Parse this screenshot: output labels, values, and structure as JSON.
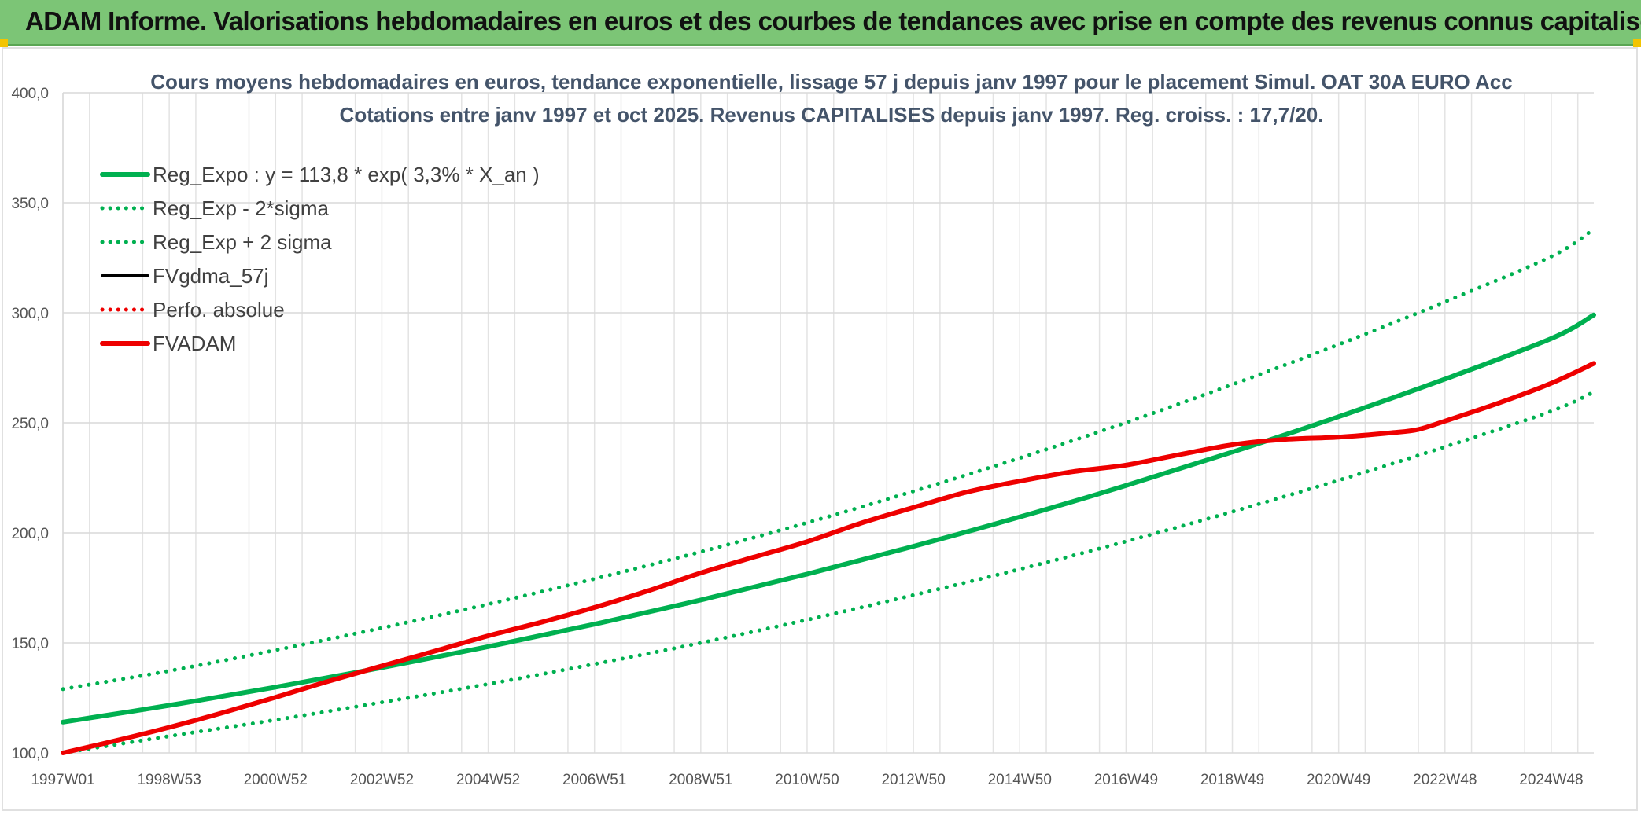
{
  "header": {
    "title": "ADAM Informe. Valorisations hebdomadaires en euros et des courbes de tendances avec prise en compte des revenus connus capitalisés"
  },
  "colors": {
    "header_bg": "#7cc576",
    "green": "#00b050",
    "red": "#ee0000",
    "black": "#000000",
    "grid": "#d9d9d9"
  },
  "chart_data": {
    "type": "line",
    "title": [
      "Cours moyens hebdomadaires en euros, tendance exponentielle, lissage 57 j depuis janv 1997 pour le placement Simul. OAT 30A EURO Acc",
      "Cotations entre janv 1997 et oct 2025. Revenus CAPITALISES depuis janv 1997. Reg. croiss. : 17,7/20."
    ],
    "ylim": [
      100,
      400
    ],
    "yticks": [
      "400,0",
      "350,0",
      "300,0",
      "250,0",
      "200,0",
      "150,0",
      "100,0"
    ],
    "xlim": [
      1997.0,
      2025.8
    ],
    "xticks": [
      {
        "label": "1997W01",
        "x": 1997.0
      },
      {
        "label": "1998W53",
        "x": 1999.0
      },
      {
        "label": "2000W52",
        "x": 2001.0
      },
      {
        "label": "2002W52",
        "x": 2003.0
      },
      {
        "label": "2004W52",
        "x": 2005.0
      },
      {
        "label": "2006W51",
        "x": 2007.0
      },
      {
        "label": "2008W51",
        "x": 2009.0
      },
      {
        "label": "2010W50",
        "x": 2011.0
      },
      {
        "label": "2012W50",
        "x": 2013.0
      },
      {
        "label": "2014W50",
        "x": 2015.0
      },
      {
        "label": "2016W49",
        "x": 2017.0
      },
      {
        "label": "2018W49",
        "x": 2019.0
      },
      {
        "label": "2020W49",
        "x": 2021.0
      },
      {
        "label": "2022W48",
        "x": 2023.0
      },
      {
        "label": "2024W48",
        "x": 2025.0
      }
    ],
    "grid": true,
    "legend_position": "top-left",
    "legend": [
      {
        "name": "Reg_Expo : y = 113,8 * exp( 3,3% *  X_an )",
        "color": "#00b050",
        "style": "solid"
      },
      {
        "name": "Reg_Exp - 2*sigma",
        "color": "#00b050",
        "style": "dotted"
      },
      {
        "name": "Reg_Exp + 2 sigma",
        "color": "#00b050",
        "style": "dotted"
      },
      {
        "name": "FVgdma_57j",
        "color": "#000000",
        "style": "solid"
      },
      {
        "name": "Perfo. absolue",
        "color": "#ee0000",
        "style": "dotted"
      },
      {
        "name": "FVADAM",
        "color": "#ee0000",
        "style": "solid"
      }
    ],
    "series": [
      {
        "name": "Reg_Expo : y = 113,8 * exp( 3,3% *  X_an )",
        "color": "#00b050",
        "style": "solid",
        "x": [
          1997.0,
          1999.0,
          2001.0,
          2003.0,
          2005.0,
          2007.0,
          2009.0,
          2011.0,
          2013.0,
          2015.0,
          2017.0,
          2019.0,
          2021.0,
          2023.0,
          2025.0,
          2025.8
        ],
        "y": [
          114,
          121.6,
          129.9,
          138.8,
          148.3,
          158.5,
          169.5,
          181.3,
          193.9,
          207.2,
          221.5,
          236.7,
          252.8,
          269.9,
          288.3,
          299
        ]
      },
      {
        "name": "Reg_Exp - 2*sigma",
        "color": "#00b050",
        "style": "dotted",
        "x": [
          1997.0,
          1999.0,
          2001.0,
          2003.0,
          2005.0,
          2007.0,
          2009.0,
          2011.0,
          2013.0,
          2015.0,
          2017.0,
          2019.0,
          2021.0,
          2023.0,
          2025.0,
          2025.8
        ],
        "y": [
          100,
          107.6,
          115,
          123,
          131.3,
          140.4,
          150,
          160.5,
          171.7,
          183.5,
          196.1,
          209.6,
          223.9,
          239.1,
          255.3,
          264
        ]
      },
      {
        "name": "Reg_Exp + 2 sigma",
        "color": "#00b050",
        "style": "dotted",
        "x": [
          1997.0,
          1999.0,
          2001.0,
          2003.0,
          2005.0,
          2007.0,
          2009.0,
          2011.0,
          2013.0,
          2015.0,
          2017.0,
          2019.0,
          2021.0,
          2023.0,
          2025.0,
          2025.8
        ],
        "y": [
          129,
          137.3,
          146.7,
          156.8,
          167.6,
          179.1,
          191.4,
          204.6,
          218.9,
          234,
          250.1,
          267.4,
          285.6,
          305,
          325.6,
          338
        ]
      },
      {
        "name": "FVADAM",
        "color": "#ee0000",
        "style": "solid",
        "x": [
          1997.0,
          1998.0,
          1999.0,
          2000.0,
          2001.0,
          2002.0,
          2003.0,
          2004.0,
          2005.0,
          2006.0,
          2007.0,
          2008.0,
          2009.0,
          2010.0,
          2011.0,
          2012.0,
          2013.0,
          2014.0,
          2015.0,
          2016.0,
          2017.0,
          2018.0,
          2019.0,
          2020.0,
          2021.0,
          2022.0,
          2022.5,
          2023.0,
          2024.0,
          2025.0,
          2025.8
        ],
        "y": [
          100,
          105.6,
          111.6,
          118.2,
          125.3,
          132.6,
          139.5,
          146.3,
          153.2,
          159.4,
          166.1,
          173.6,
          181.8,
          189,
          196,
          204.3,
          211.5,
          218.5,
          223.5,
          227.8,
          230.8,
          235.5,
          240,
          242.5,
          243.5,
          245.5,
          247,
          250.8,
          258.9,
          268,
          277
        ]
      }
    ]
  }
}
